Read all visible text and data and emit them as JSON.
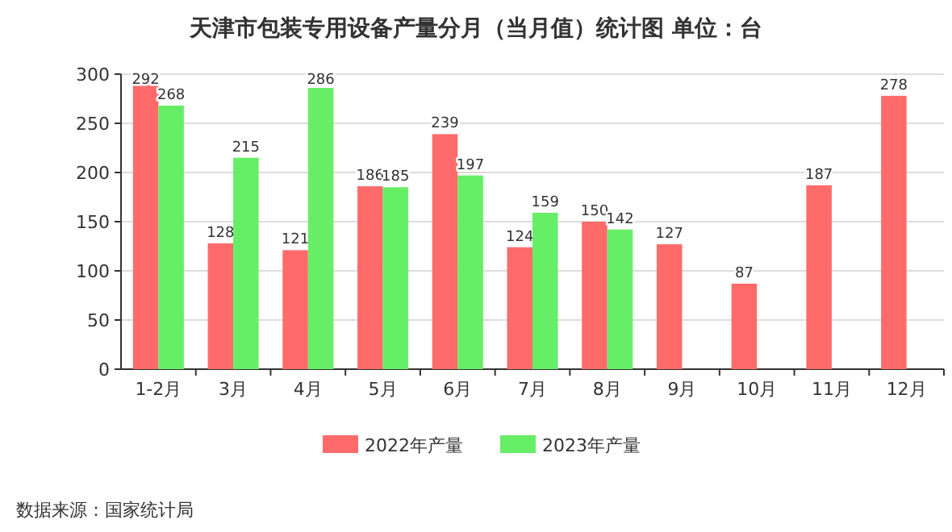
{
  "chart_data": {
    "type": "bar",
    "title": "天津市包装专用设备产量分月（当月值）统计图 单位：台",
    "categories": [
      "1-2月",
      "3月",
      "4月",
      "5月",
      "6月",
      "7月",
      "8月",
      "9月",
      "10月",
      "11月",
      "12月"
    ],
    "series": [
      {
        "name": "2022年产量",
        "color": "#ff6b6b",
        "values": [
          292,
          128,
          121,
          186,
          239,
          124,
          150,
          127,
          87,
          187,
          278
        ]
      },
      {
        "name": "2023年产量",
        "color": "#66ee66",
        "values": [
          268,
          215,
          286,
          185,
          197,
          159,
          142,
          null,
          null,
          null,
          null
        ]
      }
    ],
    "ylim": [
      0,
      300
    ],
    "yticks": [
      0,
      50,
      100,
      150,
      200,
      250,
      300
    ],
    "grid": "y",
    "legend": "bottom",
    "data_labels": true,
    "annotations": [
      "数据来源：国家统计局"
    ]
  }
}
